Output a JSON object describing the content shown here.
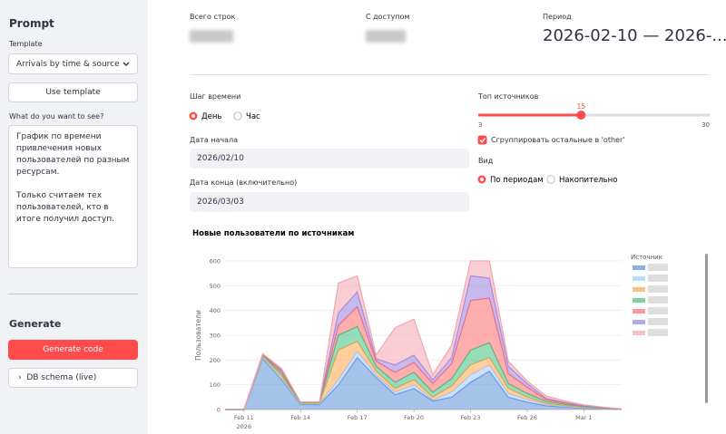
{
  "sidebar": {
    "title": "Prompt",
    "template_label": "Template",
    "template_value": "Arrivals by time & source",
    "use_template_button": "Use template",
    "prompt_label": "What do you want to see?",
    "prompt_text": "График по времени привлечения новых пользователей по разным ресурсам.\n\nТолько считаем тех пользователей, кто в итоге получил доступ.",
    "generate_title": "Generate",
    "generate_button": "Generate code",
    "schema_expander": "DB schema (live)"
  },
  "metrics": [
    {
      "label": "Всего строк"
    },
    {
      "label": "С доступом"
    },
    {
      "label": "Период",
      "value": "2026-02-10 — 2026-..."
    }
  ],
  "controls": {
    "time_step": {
      "label": "Шаг времени",
      "options": [
        "День",
        "Час"
      ],
      "selected": 0
    },
    "start_date": {
      "label": "Дата начала",
      "value": "2026/02/10"
    },
    "end_date": {
      "label": "Дата конца (включительно)",
      "value": "2026/03/03"
    },
    "top_sources": {
      "label": "Топ источников",
      "min": 3,
      "max": 30,
      "value": 15
    },
    "group_other": {
      "label": "Сгруппировать остальные в 'other'",
      "checked": true
    },
    "view": {
      "label": "Вид",
      "options": [
        "По периодам",
        "Накопительно"
      ],
      "selected": 0
    }
  },
  "chart_data": {
    "type": "stacked_area",
    "title": "Новые пользователи по источникам",
    "y_label": "Пользователи",
    "legend_title": "Источник",
    "x": [
      "2026-02-10",
      "2026-02-11",
      "2026-02-12",
      "2026-02-13",
      "2026-02-14",
      "2026-02-15",
      "2026-02-16",
      "2026-02-17",
      "2026-02-18",
      "2026-02-19",
      "2026-02-20",
      "2026-02-21",
      "2026-02-22",
      "2026-02-23",
      "2026-02-24",
      "2026-02-25",
      "2026-02-26",
      "2026-02-27",
      "2026-02-28",
      "2026-03-01",
      "2026-03-02",
      "2026-03-03"
    ],
    "xlim": [
      "2026-02-10",
      "2026-03-03"
    ],
    "xticks": [
      {
        "value": "2026-02-11",
        "label": "Feb 11"
      },
      {
        "value": "2026-02-14",
        "label": "Feb 14"
      },
      {
        "value": "2026-02-17",
        "label": "Feb 17"
      },
      {
        "value": "2026-02-20",
        "label": "Feb 20"
      },
      {
        "value": "2026-02-23",
        "label": "Feb 23"
      },
      {
        "value": "2026-02-26",
        "label": "Feb 26"
      },
      {
        "value": "2026-03-01",
        "label": "Mar 1"
      }
    ],
    "xtick_year": "2026",
    "ylim": [
      0,
      640
    ],
    "yticks": [
      0,
      100,
      200,
      300,
      400,
      500,
      600
    ],
    "grid": true,
    "series": [
      {
        "color": "#5b8fd9",
        "values": [
          0,
          0,
          205,
          120,
          20,
          20,
          100,
          210,
          130,
          60,
          85,
          35,
          50,
          110,
          155,
          50,
          30,
          15,
          10,
          5,
          3,
          1
        ]
      },
      {
        "color": "#a6c8ff",
        "values": [
          0,
          0,
          5,
          5,
          3,
          3,
          20,
          25,
          10,
          10,
          15,
          5,
          20,
          30,
          25,
          15,
          10,
          5,
          3,
          2,
          1,
          0
        ]
      },
      {
        "color": "#ffa64d",
        "values": [
          0,
          0,
          5,
          10,
          2,
          2,
          120,
          40,
          15,
          15,
          20,
          10,
          25,
          40,
          30,
          20,
          10,
          5,
          3,
          2,
          1,
          0
        ]
      },
      {
        "color": "#3fbf80",
        "values": [
          0,
          0,
          5,
          10,
          3,
          3,
          60,
          60,
          20,
          25,
          30,
          20,
          30,
          60,
          60,
          20,
          15,
          8,
          5,
          3,
          1,
          1
        ]
      },
      {
        "color": "#ff6b6b",
        "values": [
          0,
          0,
          3,
          10,
          2,
          2,
          40,
          80,
          20,
          40,
          40,
          35,
          60,
          200,
          180,
          40,
          25,
          7,
          5,
          2,
          2,
          0
        ]
      },
      {
        "color": "#9b7fe0",
        "values": [
          0,
          0,
          2,
          5,
          0,
          0,
          50,
          60,
          10,
          30,
          30,
          15,
          25,
          100,
          80,
          30,
          15,
          5,
          3,
          1,
          1,
          0
        ]
      },
      {
        "color": "#f2a5b0",
        "values": [
          0,
          0,
          0,
          5,
          0,
          0,
          120,
          65,
          15,
          150,
          145,
          20,
          50,
          60,
          70,
          20,
          10,
          10,
          6,
          4,
          1,
          1
        ]
      }
    ]
  }
}
